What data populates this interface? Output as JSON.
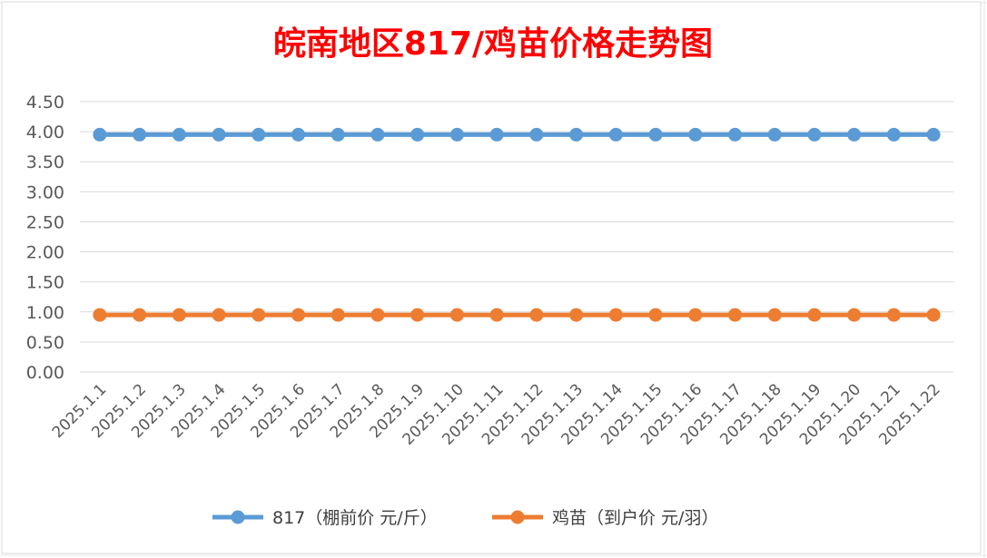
{
  "chart_data": {
    "type": "line",
    "title": "皖南地区817/鸡苗价格走势图",
    "xlabel": "",
    "ylabel": "",
    "categories": [
      "2025.1.1",
      "2025.1.2",
      "2025.1.3",
      "2025.1.4",
      "2025.1.5",
      "2025.1.6",
      "2025.1.7",
      "2025.1.8",
      "2025.1.9",
      "2025.1.10",
      "2025.1.11",
      "2025.1.12",
      "2025.1.13",
      "2025.1.14",
      "2025.1.15",
      "2025.1.16",
      "2025.1.17",
      "2025.1.18",
      "2025.1.19",
      "2025.1.20",
      "2025.1.21",
      "2025.1.22"
    ],
    "ylim": [
      0,
      4.5
    ],
    "yticks": [
      "0.00",
      "0.50",
      "1.00",
      "1.50",
      "2.00",
      "2.50",
      "3.00",
      "3.50",
      "4.00",
      "4.50"
    ],
    "grid": true,
    "legend_position": "bottom",
    "series": [
      {
        "name": "817（棚前价 元/斤）",
        "color": "#5b9bd5",
        "values": [
          3.95,
          3.95,
          3.95,
          3.95,
          3.95,
          3.95,
          3.95,
          3.95,
          3.95,
          3.95,
          3.95,
          3.95,
          3.95,
          3.95,
          3.95,
          3.95,
          3.95,
          3.95,
          3.95,
          3.95,
          3.95,
          3.95
        ]
      },
      {
        "name": "鸡苗（到户价 元/羽）",
        "color": "#ed7d31",
        "values": [
          0.95,
          0.95,
          0.95,
          0.95,
          0.95,
          0.95,
          0.95,
          0.95,
          0.95,
          0.95,
          0.95,
          0.95,
          0.95,
          0.95,
          0.95,
          0.95,
          0.95,
          0.95,
          0.95,
          0.95,
          0.95,
          0.95
        ]
      }
    ]
  }
}
